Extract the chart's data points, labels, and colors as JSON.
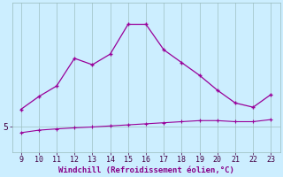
{
  "x": [
    9,
    10,
    11,
    12,
    13,
    14,
    15,
    16,
    17,
    18,
    19,
    20,
    21,
    22,
    23
  ],
  "y_upper": [
    5.8,
    6.4,
    6.9,
    8.2,
    7.9,
    8.4,
    9.8,
    9.8,
    8.6,
    8.0,
    7.4,
    6.7,
    6.1,
    5.9,
    6.5
  ],
  "y_lower": [
    4.7,
    4.82,
    4.88,
    4.93,
    4.97,
    5.02,
    5.07,
    5.12,
    5.17,
    5.22,
    5.27,
    5.27,
    5.22,
    5.22,
    5.32
  ],
  "line_color": "#990099",
  "bg_color": "#cceeff",
  "grid_color": "#99bbbb",
  "xlabel": "Windchill (Refroidissement éolien,°C)",
  "ytick_labels": [
    "5"
  ],
  "ytick_values": [
    5
  ],
  "xlim": [
    8.5,
    23.5
  ],
  "ylim": [
    3.8,
    10.8
  ],
  "xlabel_color": "#880088",
  "ytick_color": "#440044",
  "xtick_color": "#440044",
  "xlabel_fontsize": 6.5,
  "tick_fontsize": 6
}
